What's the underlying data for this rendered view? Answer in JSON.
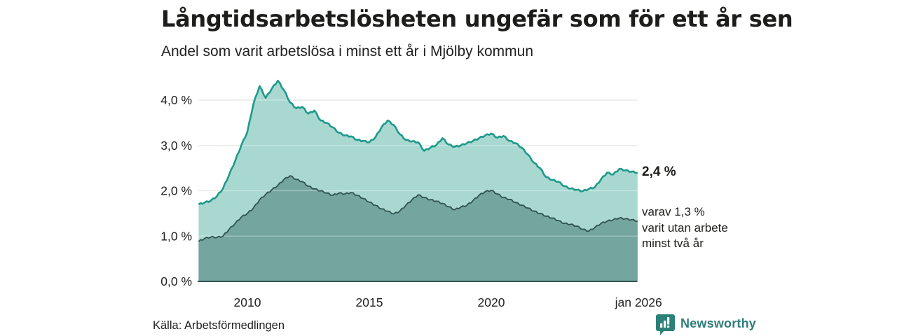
{
  "header": {
    "title": "Långtidsarbetslösheten ungefär som för ett år sen",
    "subtitle": "Andel som varit arbetslösa i minst ett år i Mjölby kommun"
  },
  "annotations": {
    "total_end_label": "2,4 %",
    "breakdown_line1": "varav 1,3 %",
    "breakdown_line2": "varit utan arbete",
    "breakdown_line3": "minst två år"
  },
  "footer": {
    "source": "Källa: Arbetsförmedlingen",
    "brand": "Newsworthy"
  },
  "colors": {
    "total_line": "#1d9a8a",
    "total_fill": "#a9d8d1",
    "two_year_line": "#2f534f",
    "two_year_fill": "#74a59e",
    "gridline": "#d8d8d8",
    "grid_overlay": "rgba(255,255,255,0.38)",
    "baseline": "#33544f",
    "axis_text": "#222222",
    "brand_teal": "#2e7d78"
  },
  "chart_data": {
    "type": "area",
    "title": "Långtidsarbetslösheten ungefär som för ett år sen",
    "subtitle": "Andel som varit arbetslösa i minst ett år i Mjölby kommun",
    "unit": "%",
    "x_axis": {
      "range": [
        2008.0,
        2026.08
      ],
      "ticks": [
        {
          "value": 2010,
          "label": "2010"
        },
        {
          "value": 2015,
          "label": "2015"
        },
        {
          "value": 2020,
          "label": "2020"
        },
        {
          "value": 2026.04,
          "label": "jan 2026"
        }
      ]
    },
    "y_axis": {
      "range": [
        0,
        4.5
      ],
      "ticks": [
        {
          "value": 0,
          "label": "0,0 %"
        },
        {
          "value": 1,
          "label": "1,0 %"
        },
        {
          "value": 2,
          "label": "2,0 %"
        },
        {
          "value": 3,
          "label": "3,0 %"
        },
        {
          "value": 4,
          "label": "4,0 %"
        }
      ]
    },
    "legend_position": "right-of-line-ends",
    "grid": true,
    "series": [
      {
        "name": "Andel arbetslösa minst ett år",
        "end_value_label": "2,4 %",
        "end_value": 2.4,
        "points": [
          [
            2008.0,
            1.7
          ],
          [
            2008.25,
            1.74
          ],
          [
            2008.5,
            1.78
          ],
          [
            2008.75,
            1.88
          ],
          [
            2009.0,
            2.05
          ],
          [
            2009.25,
            2.35
          ],
          [
            2009.5,
            2.66
          ],
          [
            2009.75,
            3.0
          ],
          [
            2010.0,
            3.3
          ],
          [
            2010.25,
            3.92
          ],
          [
            2010.5,
            4.31
          ],
          [
            2010.75,
            4.05
          ],
          [
            2011.0,
            4.25
          ],
          [
            2011.25,
            4.43
          ],
          [
            2011.5,
            4.22
          ],
          [
            2011.75,
            3.95
          ],
          [
            2012.0,
            3.82
          ],
          [
            2012.25,
            3.85
          ],
          [
            2012.5,
            3.7
          ],
          [
            2012.75,
            3.77
          ],
          [
            2013.0,
            3.55
          ],
          [
            2013.25,
            3.5
          ],
          [
            2013.5,
            3.4
          ],
          [
            2013.75,
            3.28
          ],
          [
            2014.0,
            3.22
          ],
          [
            2014.25,
            3.2
          ],
          [
            2014.5,
            3.12
          ],
          [
            2014.75,
            3.1
          ],
          [
            2015.0,
            3.07
          ],
          [
            2015.25,
            3.18
          ],
          [
            2015.5,
            3.4
          ],
          [
            2015.75,
            3.55
          ],
          [
            2016.0,
            3.45
          ],
          [
            2016.25,
            3.25
          ],
          [
            2016.5,
            3.12
          ],
          [
            2016.75,
            3.09
          ],
          [
            2017.0,
            3.07
          ],
          [
            2017.25,
            2.88
          ],
          [
            2017.5,
            2.95
          ],
          [
            2017.75,
            3.01
          ],
          [
            2018.0,
            3.16
          ],
          [
            2018.25,
            3.02
          ],
          [
            2018.5,
            2.97
          ],
          [
            2018.75,
            3.0
          ],
          [
            2019.0,
            3.05
          ],
          [
            2019.25,
            3.1
          ],
          [
            2019.5,
            3.16
          ],
          [
            2019.75,
            3.22
          ],
          [
            2020.0,
            3.26
          ],
          [
            2020.25,
            3.17
          ],
          [
            2020.5,
            3.21
          ],
          [
            2020.75,
            3.1
          ],
          [
            2021.0,
            3.05
          ],
          [
            2021.25,
            2.95
          ],
          [
            2021.5,
            2.8
          ],
          [
            2021.75,
            2.62
          ],
          [
            2022.0,
            2.5
          ],
          [
            2022.25,
            2.3
          ],
          [
            2022.5,
            2.24
          ],
          [
            2022.75,
            2.2
          ],
          [
            2023.0,
            2.1
          ],
          [
            2023.25,
            2.05
          ],
          [
            2023.5,
            2.02
          ],
          [
            2023.75,
            1.99
          ],
          [
            2024.0,
            2.04
          ],
          [
            2024.25,
            2.08
          ],
          [
            2024.5,
            2.25
          ],
          [
            2024.75,
            2.4
          ],
          [
            2025.0,
            2.36
          ],
          [
            2025.25,
            2.48
          ],
          [
            2025.5,
            2.45
          ],
          [
            2025.75,
            2.42
          ],
          [
            2026.0,
            2.4
          ]
        ]
      },
      {
        "name": "varav utan arbete minst två år",
        "end_value_label": "varav 1,3 % varit utan arbete minst två år",
        "end_value": 1.3,
        "points": [
          [
            2008.0,
            0.88
          ],
          [
            2008.25,
            0.95
          ],
          [
            2008.5,
            0.98
          ],
          [
            2008.75,
            0.97
          ],
          [
            2009.0,
            1.0
          ],
          [
            2009.25,
            1.15
          ],
          [
            2009.5,
            1.28
          ],
          [
            2009.75,
            1.42
          ],
          [
            2010.0,
            1.5
          ],
          [
            2010.25,
            1.62
          ],
          [
            2010.5,
            1.8
          ],
          [
            2010.75,
            1.92
          ],
          [
            2011.0,
            2.02
          ],
          [
            2011.25,
            2.12
          ],
          [
            2011.5,
            2.25
          ],
          [
            2011.75,
            2.33
          ],
          [
            2012.0,
            2.25
          ],
          [
            2012.25,
            2.2
          ],
          [
            2012.5,
            2.1
          ],
          [
            2012.75,
            2.04
          ],
          [
            2013.0,
            2.0
          ],
          [
            2013.25,
            1.95
          ],
          [
            2013.5,
            1.9
          ],
          [
            2013.75,
            1.95
          ],
          [
            2014.0,
            1.93
          ],
          [
            2014.25,
            1.96
          ],
          [
            2014.5,
            1.9
          ],
          [
            2014.75,
            1.83
          ],
          [
            2015.0,
            1.75
          ],
          [
            2015.25,
            1.68
          ],
          [
            2015.5,
            1.6
          ],
          [
            2015.75,
            1.55
          ],
          [
            2016.0,
            1.49
          ],
          [
            2016.25,
            1.55
          ],
          [
            2016.5,
            1.68
          ],
          [
            2016.75,
            1.8
          ],
          [
            2017.0,
            1.91
          ],
          [
            2017.25,
            1.85
          ],
          [
            2017.5,
            1.8
          ],
          [
            2017.75,
            1.77
          ],
          [
            2018.0,
            1.72
          ],
          [
            2018.25,
            1.65
          ],
          [
            2018.5,
            1.58
          ],
          [
            2018.75,
            1.64
          ],
          [
            2019.0,
            1.68
          ],
          [
            2019.25,
            1.78
          ],
          [
            2019.5,
            1.9
          ],
          [
            2019.75,
            1.98
          ],
          [
            2020.0,
            2.01
          ],
          [
            2020.25,
            1.93
          ],
          [
            2020.5,
            1.85
          ],
          [
            2020.75,
            1.81
          ],
          [
            2021.0,
            1.74
          ],
          [
            2021.25,
            1.68
          ],
          [
            2021.5,
            1.62
          ],
          [
            2021.75,
            1.55
          ],
          [
            2022.0,
            1.5
          ],
          [
            2022.25,
            1.44
          ],
          [
            2022.5,
            1.4
          ],
          [
            2022.75,
            1.34
          ],
          [
            2023.0,
            1.28
          ],
          [
            2023.25,
            1.26
          ],
          [
            2023.5,
            1.22
          ],
          [
            2023.75,
            1.15
          ],
          [
            2024.0,
            1.11
          ],
          [
            2024.25,
            1.19
          ],
          [
            2024.5,
            1.28
          ],
          [
            2024.75,
            1.33
          ],
          [
            2025.0,
            1.36
          ],
          [
            2025.25,
            1.4
          ],
          [
            2025.5,
            1.38
          ],
          [
            2025.75,
            1.36
          ],
          [
            2026.0,
            1.33
          ]
        ]
      }
    ]
  }
}
